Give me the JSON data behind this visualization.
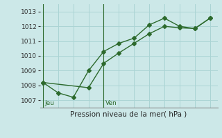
{
  "line1_x": [
    0,
    1,
    2,
    3,
    4,
    5,
    6,
    7,
    8,
    9,
    10,
    11
  ],
  "line1_y": [
    1008.2,
    1007.5,
    1007.2,
    1009.0,
    1010.3,
    1010.85,
    1011.2,
    1012.1,
    1012.55,
    1012.0,
    1011.85,
    1012.55
  ],
  "line2_x": [
    0,
    3,
    4,
    5,
    6,
    7,
    8,
    9,
    10,
    11
  ],
  "line2_y": [
    1008.2,
    1007.85,
    1009.5,
    1010.2,
    1010.85,
    1011.5,
    1012.0,
    1011.9,
    1011.85,
    1012.55
  ],
  "jeu_x": 0,
  "ven_x": 4,
  "day_labels": [
    "Jeu",
    "Ven"
  ],
  "xlabel": "Pression niveau de la mer( hPa )",
  "yticks": [
    1007,
    1008,
    1009,
    1010,
    1011,
    1012,
    1013
  ],
  "ylim": [
    1006.5,
    1013.5
  ],
  "xlim": [
    -0.2,
    11.5
  ],
  "line_color": "#2d6a2d",
  "bg_color": "#cce8e8",
  "grid_color": "#aad4d4",
  "markersize": 3,
  "linewidth": 1.0
}
